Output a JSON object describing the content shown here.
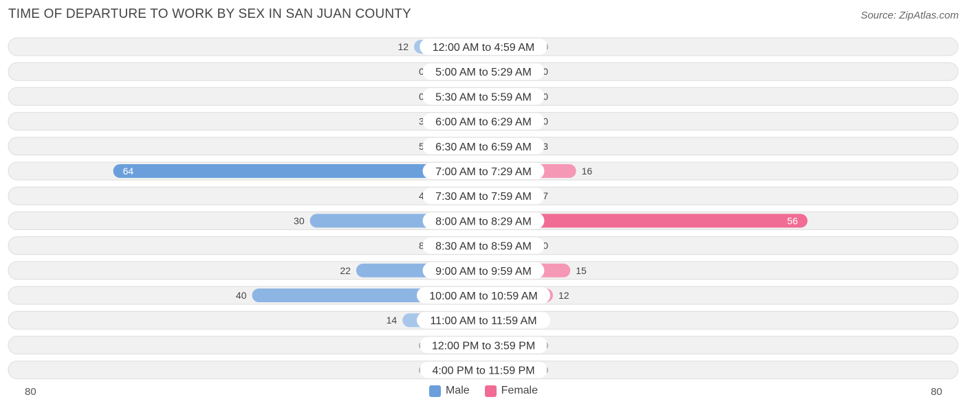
{
  "header": {
    "title": "TIME OF DEPARTURE TO WORK BY SEX IN SAN JUAN COUNTY",
    "source": "Source: ZipAtlas.com"
  },
  "axis": {
    "left_label": "80",
    "right_label": "80"
  },
  "legend": {
    "male_label": "Male",
    "female_label": "Female"
  },
  "colors": {
    "male_light": "#a8c6ea",
    "male_strong": "#6a9fdc",
    "female_light": "#f5aac1",
    "female_strong": "#f06c95",
    "row_bg": "#f1f1f1",
    "row_border": "#dddddd"
  },
  "chart_data": {
    "type": "bar",
    "orientation": "diverging-horizontal",
    "title": "TIME OF DEPARTURE TO WORK BY SEX IN SAN JUAN COUNTY",
    "xlim": [
      -80,
      80
    ],
    "categories": [
      "12:00 AM to 4:59 AM",
      "5:00 AM to 5:29 AM",
      "5:30 AM to 5:59 AM",
      "6:00 AM to 6:29 AM",
      "6:30 AM to 6:59 AM",
      "7:00 AM to 7:29 AM",
      "7:30 AM to 7:59 AM",
      "8:00 AM to 8:29 AM",
      "8:30 AM to 8:59 AM",
      "9:00 AM to 9:59 AM",
      "10:00 AM to 10:59 AM",
      "11:00 AM to 11:59 AM",
      "12:00 PM to 3:59 PM",
      "4:00 PM to 11:59 PM"
    ],
    "series": [
      {
        "name": "Male",
        "values": [
          12,
          0,
          0,
          3,
          5,
          64,
          4,
          30,
          8,
          22,
          40,
          14,
          0,
          0
        ]
      },
      {
        "name": "Female",
        "values": [
          0,
          0,
          0,
          0,
          3,
          16,
          7,
          56,
          0,
          15,
          12,
          0,
          0,
          0
        ]
      }
    ]
  }
}
